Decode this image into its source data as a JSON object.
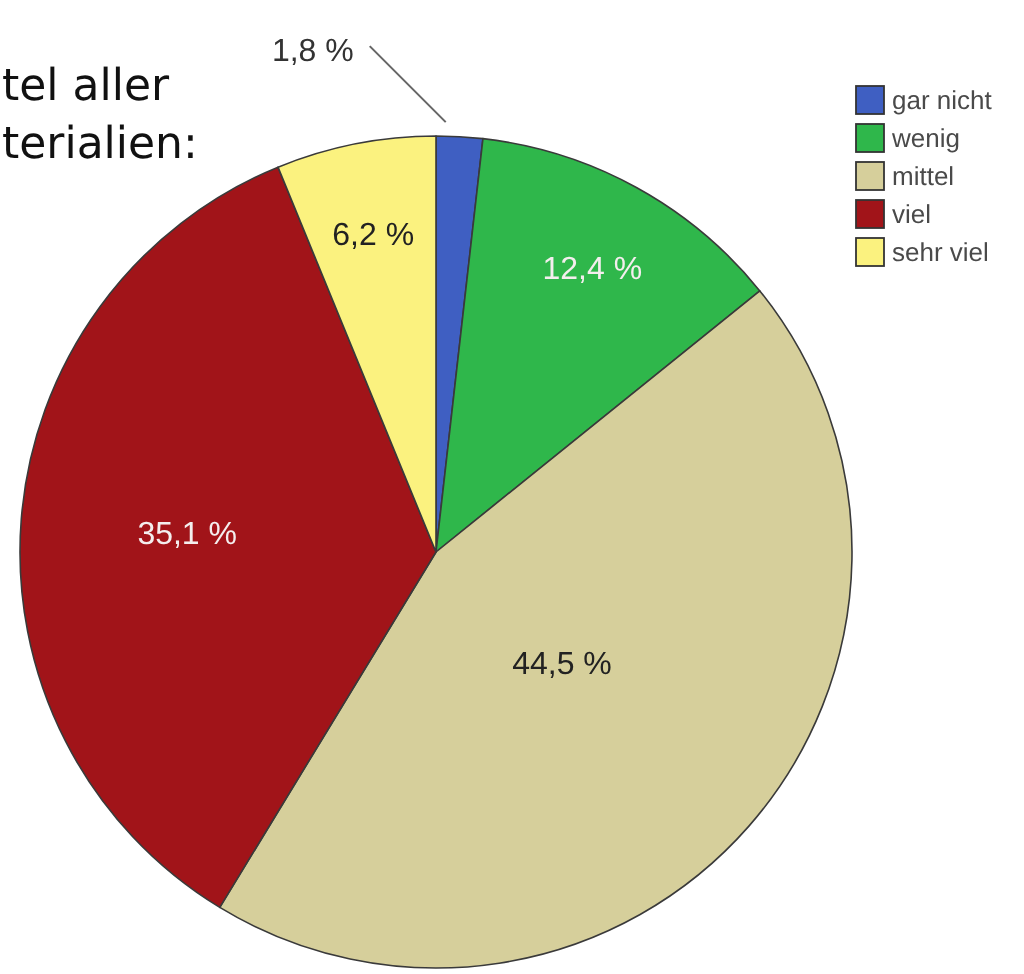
{
  "chart_data": {
    "type": "pie",
    "title": "tel aller\nterialien:",
    "categories": [
      "gar nicht",
      "wenig",
      "mittel",
      "viel",
      "sehr viel"
    ],
    "values": [
      1.8,
      12.4,
      44.5,
      35.1,
      6.2
    ],
    "colors": [
      "#3f5fc2",
      "#2fb74b",
      "#d6cf9b",
      "#a11419",
      "#fbf27f"
    ],
    "value_labels": [
      "1,8 %",
      "12,4 %",
      "44,5 %",
      "35,1 %",
      "6,2 %"
    ],
    "legend": "top right"
  }
}
